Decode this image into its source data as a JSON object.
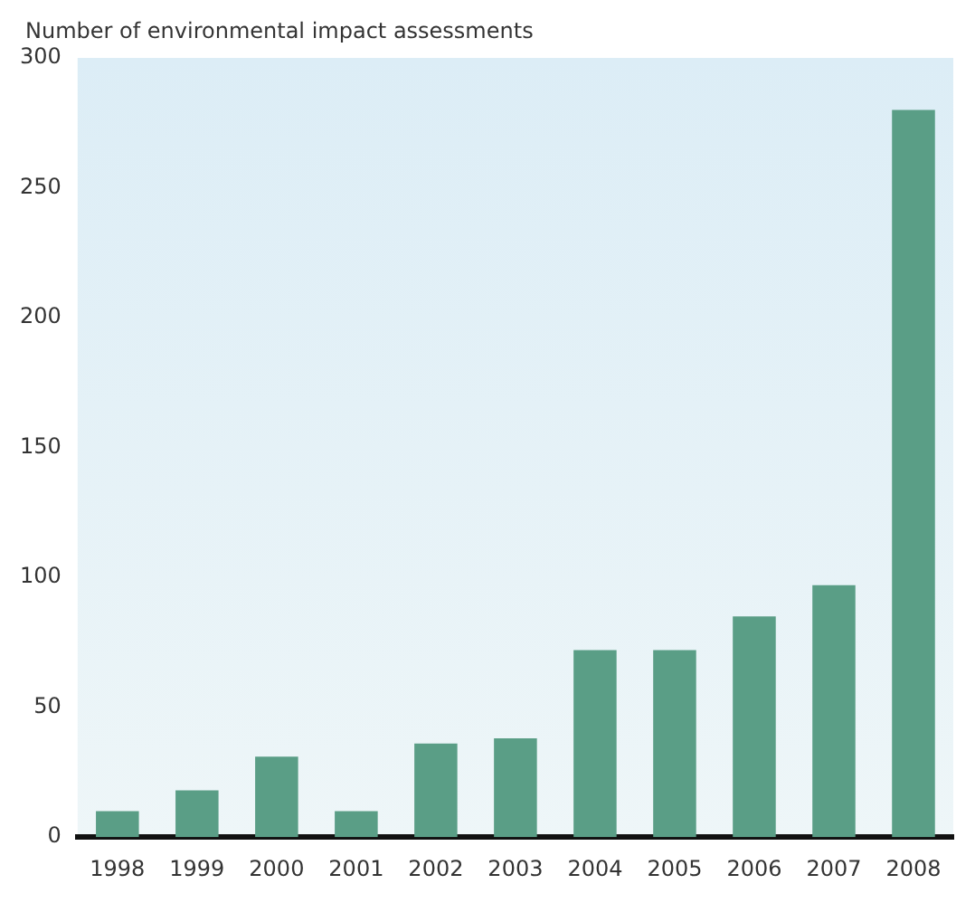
{
  "chart_data": {
    "type": "bar",
    "ylabel": "Number of environmental impact assessments",
    "categories": [
      "1998",
      "1999",
      "2000",
      "2001",
      "2002",
      "2003",
      "2004",
      "2005",
      "2006",
      "2007",
      "2008"
    ],
    "values": [
      10,
      18,
      31,
      10,
      36,
      38,
      72,
      72,
      85,
      97,
      280
    ],
    "color": "#5a9e86",
    "ylim": [
      0,
      300
    ],
    "yticks": [
      0,
      50,
      100,
      150,
      200,
      250,
      300
    ],
    "grid": false,
    "legend": false
  }
}
